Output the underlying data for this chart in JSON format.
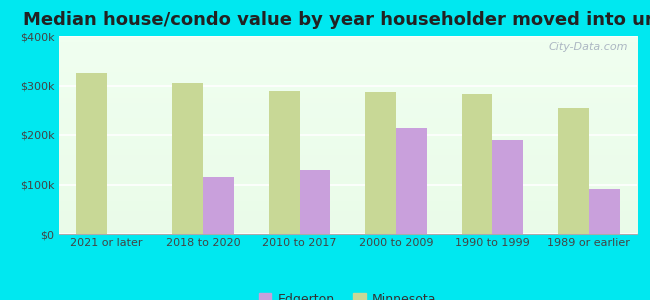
{
  "title": "Median house/condo value by year householder moved into unit",
  "categories": [
    "2021 or later",
    "2018 to 2020",
    "2010 to 2017",
    "2000 to 2009",
    "1990 to 1999",
    "1989 or earlier"
  ],
  "edgerton": [
    null,
    115000,
    130000,
    215000,
    190000,
    90000
  ],
  "minnesota": [
    325000,
    305000,
    288000,
    287000,
    283000,
    255000
  ],
  "edgerton_color": "#c9a0dc",
  "minnesota_color": "#c8d896",
  "background_color": "#00e8f0",
  "ylim": [
    0,
    400000
  ],
  "yticks": [
    0,
    100000,
    200000,
    300000,
    400000
  ],
  "ytick_labels": [
    "$0",
    "$100k",
    "$200k",
    "$300k",
    "$400k"
  ],
  "bar_width": 0.32,
  "watermark": "City-Data.com",
  "legend_edgerton": "Edgerton",
  "legend_minnesota": "Minnesota",
  "title_fontsize": 13,
  "tick_fontsize": 8,
  "legend_fontsize": 9
}
